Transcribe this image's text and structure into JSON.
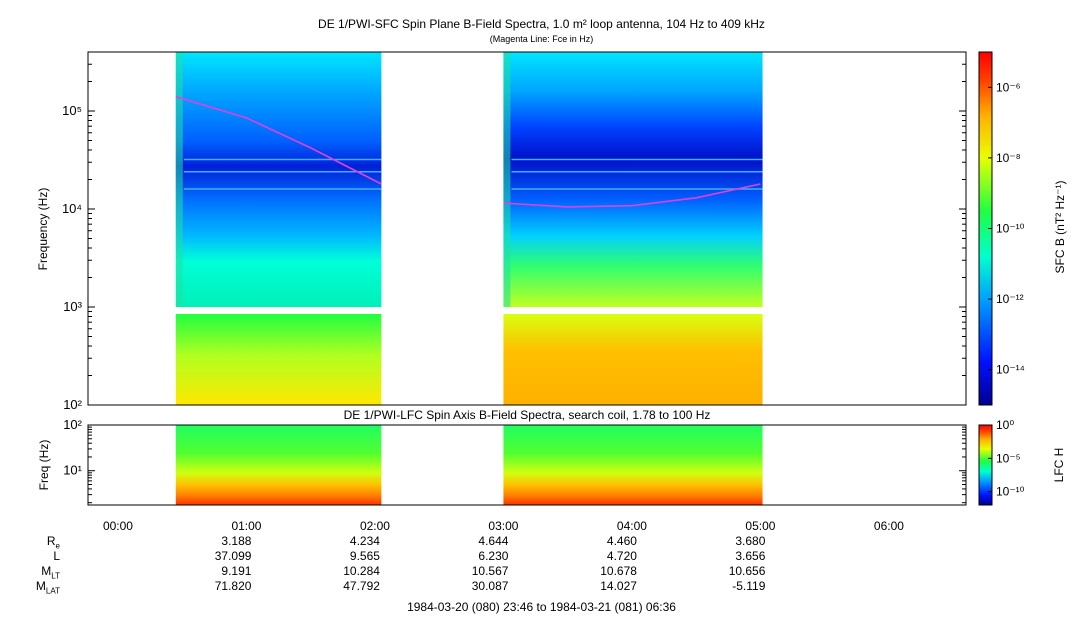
{
  "chart_data": [
    {
      "type": "heatmap",
      "title": "DE 1/PWI-SFC  Spin Plane B-Field Spectra, 1.0 m² loop antenna, 104 Hz to 409 kHz",
      "subtitle": "(Magenta Line: Fce in Hz)",
      "ylabel": "Frequency (Hz)",
      "yscale": "log",
      "ylim": [
        100,
        400000
      ],
      "yticks": [
        "10²",
        "10³",
        "10⁴",
        "10⁵"
      ],
      "xlim": [
        "23:46",
        "06:36"
      ],
      "data_intervals": [
        [
          "00:27",
          "02:03"
        ],
        [
          "03:00",
          "05:01"
        ]
      ],
      "fce_line": [
        {
          "t": "00:27",
          "f": 140000
        },
        {
          "t": "01:00",
          "f": 85000
        },
        {
          "t": "01:30",
          "f": 42000
        },
        {
          "t": "02:03",
          "f": 18000
        },
        {
          "t": "03:00",
          "f": 11500
        },
        {
          "t": "03:30",
          "f": 10500
        },
        {
          "t": "04:00",
          "f": 10800
        },
        {
          "t": "04:30",
          "f": 13000
        },
        {
          "t": "05:00",
          "f": 18000
        }
      ],
      "colorbar": {
        "label": "SFC B (nT² Hz⁻¹)",
        "ticks": [
          "10⁻⁶",
          "10⁻⁸",
          "10⁻¹⁰",
          "10⁻¹²",
          "10⁻¹⁴"
        ],
        "range": [
          1e-15,
          1e-05
        ],
        "scale": "log"
      }
    },
    {
      "type": "heatmap",
      "title": "DE 1/PWI-LFC  Spin Axis B-Field Spectra, search coil, 1.78 to 100 Hz",
      "ylabel": "Freq (Hz)",
      "yscale": "log",
      "ylim": [
        1.78,
        100
      ],
      "yticks": [
        "10¹",
        "10²"
      ],
      "data_intervals": [
        [
          "00:27",
          "02:03"
        ],
        [
          "03:00",
          "05:01"
        ]
      ],
      "colorbar": {
        "label": "LFC H",
        "ticks": [
          "10⁰",
          "10⁻⁵",
          "10⁻¹⁰"
        ],
        "range": [
          1e-12,
          1
        ],
        "scale": "log"
      }
    }
  ],
  "x_ticks": [
    "00:00",
    "01:00",
    "02:00",
    "03:00",
    "04:00",
    "05:00",
    "06:00"
  ],
  "orbit": {
    "labels": [
      "R",
      "L",
      "M",
      "M"
    ],
    "subscripts": [
      "e",
      "",
      "LT",
      "LAT"
    ],
    "rows": [
      [
        "3.188",
        "4.234",
        "4.644",
        "4.460",
        "3.680"
      ],
      [
        "37.099",
        "9.565",
        "6.230",
        "4.720",
        "3.656"
      ],
      [
        "9.191",
        "10.284",
        "10.567",
        "10.678",
        "10.656"
      ],
      [
        "71.820",
        "47.792",
        "30.087",
        "14.027",
        "-5.119"
      ]
    ]
  },
  "footer": "1984-03-20 (080) 23:46 to 1984-03-21 (081) 06:36",
  "colors": {
    "fce_line": "#e040e0",
    "frame": "#000000"
  }
}
